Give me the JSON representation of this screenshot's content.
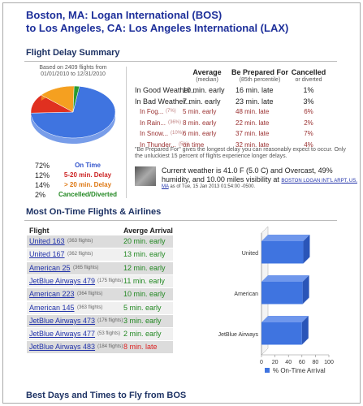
{
  "header": {
    "title": [
      "Boston, MA: Logan International (BOS)",
      "to Los Angeles, CA: Los Angeles International (LAX)"
    ]
  },
  "delay": {
    "heading": "Flight Delay Summary",
    "based_on": [
      "Based on 2409 flights from",
      "01/01/2010 to 12/31/2010"
    ],
    "pie": {
      "type": "pie",
      "values": [
        72,
        12,
        14,
        2
      ],
      "value_labels": [
        "72%",
        "12%",
        "14%",
        "2%"
      ],
      "labels": [
        "On Time",
        "5-20 min. Delay",
        "> 20 min. Delay",
        "Cancelled/Diverted"
      ],
      "colors": [
        "#3f74e0",
        "#e03020",
        "#f5a020",
        "#2a9a30"
      ],
      "label_colors": [
        "#3355cc",
        "#cc2222",
        "#dd7711",
        "#228822"
      ]
    },
    "table": {
      "columns": [
        {
          "title": "Average",
          "sub": "(median)"
        },
        {
          "title": "Be Prepared For",
          "sub": "(85th percentile)"
        },
        {
          "title": "Cancelled",
          "sub": "or diverted"
        }
      ],
      "rows": [
        {
          "label": "In Good Weather...",
          "cells": [
            "10 min. early",
            "16 min. late",
            "1%"
          ]
        },
        {
          "label": "In Bad Weather...",
          "cells": [
            "7 min. early",
            "23 min. late",
            "3%"
          ]
        },
        {
          "label": "In Fog...",
          "share": "(7%)",
          "cells": [
            "5 min. early",
            "48 min. late",
            "6%"
          ]
        },
        {
          "label": "In Rain...",
          "share": "(36%)",
          "cells": [
            "8 min. early",
            "22 min. late",
            "2%"
          ]
        },
        {
          "label": "In Snow...",
          "share": "(10%)",
          "cells": [
            "6 min. early",
            "37 min. late",
            "7%"
          ]
        },
        {
          "label": "In Thunder...",
          "share": "(5%)",
          "cells": [
            "on time",
            "32 min. late",
            "4%"
          ]
        }
      ]
    },
    "note": [
      "\"Be Prepared For\" gives the longest delay you can reasonably expect to occur. Only",
      "the unluckiest 15 percent of flights experience longer delays."
    ],
    "weather": {
      "text": [
        "Current weather is 41.0 F (5.0 C) and Overcast, 49%",
        "humidity, and 10.00 miles visibility at"
      ],
      "link": "BOSTON LOGAN INT'L ARPT, US,",
      "link2": "MA",
      "time": "as of Tue, 15 Jan 2013 01:54:00 -0500."
    }
  },
  "ontime": {
    "heading": "Most On-Time Flights & Airlines",
    "columns": [
      "Flight",
      "Averge Arrival"
    ],
    "rows": [
      {
        "flight": "United 163",
        "count": "(363 flights)",
        "arrival": "20 min. early"
      },
      {
        "flight": "United 167",
        "count": "(362 flights)",
        "arrival": "13 min. early"
      },
      {
        "flight": "American 25",
        "count": "(365 flights)",
        "arrival": "12 min. early"
      },
      {
        "flight": "JetBlue Airways 479",
        "count": "(175 flights)",
        "arrival": "11 min. early"
      },
      {
        "flight": "American 223",
        "count": "(364 flights)",
        "arrival": "10 min. early"
      },
      {
        "flight": "American 145",
        "count": "(363 flights)",
        "arrival": "5 min. early"
      },
      {
        "flight": "JetBlue Airways 473",
        "count": "(176 flights)",
        "arrival": "3 min. early"
      },
      {
        "flight": "JetBlue Airways 477",
        "count": "(53 flights)",
        "arrival": "2 min. early"
      },
      {
        "flight": "JetBlue Airways 483",
        "count": "(184 flights)",
        "arrival": "8 min. late"
      }
    ],
    "arrival_colors": [
      "#228822",
      "#228822",
      "#228822",
      "#228822",
      "#228822",
      "#228822",
      "#228822",
      "#228822",
      "#dd2222"
    ],
    "chart": {
      "type": "bar",
      "orientation": "horizontal",
      "categories": [
        "United",
        "American",
        "JetBlue Airways"
      ],
      "series": [
        {
          "name": "% On-Time Arrival",
          "color": "#3f74e0",
          "values": [
            62,
            61,
            60
          ]
        }
      ],
      "xlim": [
        0,
        100
      ],
      "xticks": [
        0,
        20,
        40,
        60,
        80,
        100
      ]
    }
  },
  "footer": {
    "heading": "Best Days and Times to Fly from BOS"
  }
}
